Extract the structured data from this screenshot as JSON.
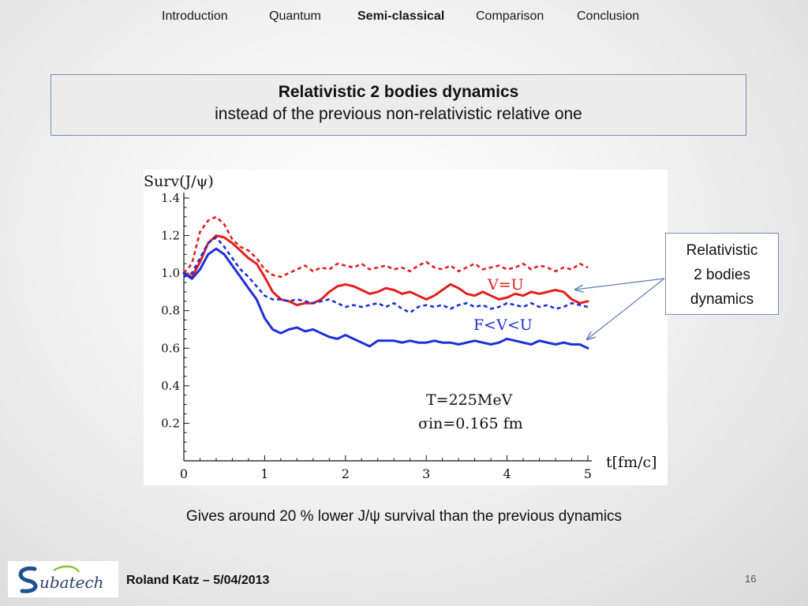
{
  "nav": {
    "items": [
      "Introduction",
      "Quantum",
      "Semi-classical",
      "Comparison",
      "Conclusion"
    ],
    "active": "Semi-classical"
  },
  "slide": {
    "title_bold": "Relativistic 2 bodies dynamics",
    "title_sub": "instead of the previous non-relativistic relative one",
    "caption": "Gives around 20 % lower J/ψ survival than the previous dynamics",
    "callout": [
      "Relativistic",
      "2 bodies",
      "dynamics"
    ],
    "author": "Roland Katz – 5/04/2013",
    "page_number": "16",
    "logo_text": "ubatech"
  },
  "chart_data": {
    "type": "line",
    "ylabel": "Surv(J/ψ)",
    "xlabel": "t[fm/c]",
    "xlim": [
      0,
      5
    ],
    "ylim": [
      0,
      1.4
    ],
    "xticks": [
      "0",
      "1",
      "2",
      "3",
      "4",
      "5"
    ],
    "yticks": [
      "0.2",
      "0.4",
      "0.6",
      "0.8",
      "1.0",
      "1.2",
      "1.4"
    ],
    "annotations": [
      "V=U",
      "F<V<U",
      "T=225MeV",
      "σin=0.165 fm"
    ],
    "colors": {
      "red": "#e41e1e",
      "blue": "#1c2fd8"
    },
    "series": [
      {
        "color": "red",
        "style": "dashed",
        "x": [
          0,
          0.1,
          0.2,
          0.3,
          0.4,
          0.5,
          0.6,
          0.7,
          0.8,
          0.9,
          1.0,
          1.1,
          1.2,
          1.3,
          1.4,
          1.5,
          1.6,
          1.7,
          1.8,
          1.9,
          2.0,
          2.1,
          2.2,
          2.3,
          2.4,
          2.5,
          2.6,
          2.7,
          2.8,
          2.9,
          3.0,
          3.1,
          3.2,
          3.3,
          3.4,
          3.5,
          3.6,
          3.7,
          3.8,
          3.9,
          4.0,
          4.1,
          4.2,
          4.3,
          4.4,
          4.5,
          4.6,
          4.7,
          4.8,
          4.9,
          5.0
        ],
        "y": [
          1.0,
          1.05,
          1.22,
          1.28,
          1.3,
          1.26,
          1.18,
          1.14,
          1.12,
          1.08,
          1.02,
          0.99,
          0.98,
          1.0,
          1.02,
          1.04,
          1.01,
          1.03,
          1.02,
          1.05,
          1.04,
          1.03,
          1.05,
          1.02,
          1.03,
          1.04,
          1.02,
          1.03,
          1.01,
          1.04,
          1.06,
          1.03,
          1.02,
          1.04,
          1.01,
          1.03,
          1.05,
          1.02,
          1.03,
          1.04,
          1.02,
          1.03,
          1.05,
          1.02,
          1.04,
          1.03,
          1.01,
          1.03,
          1.02,
          1.05,
          1.03
        ]
      },
      {
        "color": "red",
        "style": "solid",
        "x": [
          0,
          0.1,
          0.2,
          0.3,
          0.4,
          0.5,
          0.6,
          0.7,
          0.8,
          0.9,
          1.0,
          1.1,
          1.2,
          1.3,
          1.4,
          1.5,
          1.6,
          1.7,
          1.8,
          1.9,
          2.0,
          2.1,
          2.2,
          2.3,
          2.4,
          2.5,
          2.6,
          2.7,
          2.8,
          2.9,
          3.0,
          3.1,
          3.2,
          3.3,
          3.4,
          3.5,
          3.6,
          3.7,
          3.8,
          3.9,
          4.0,
          4.1,
          4.2,
          4.3,
          4.4,
          4.5,
          4.6,
          4.7,
          4.8,
          4.9,
          5.0
        ],
        "y": [
          1.0,
          0.98,
          1.06,
          1.16,
          1.2,
          1.19,
          1.16,
          1.12,
          1.08,
          1.05,
          0.98,
          0.9,
          0.86,
          0.85,
          0.83,
          0.84,
          0.84,
          0.86,
          0.9,
          0.93,
          0.94,
          0.93,
          0.91,
          0.89,
          0.9,
          0.92,
          0.91,
          0.89,
          0.9,
          0.88,
          0.86,
          0.88,
          0.91,
          0.94,
          0.92,
          0.89,
          0.88,
          0.9,
          0.88,
          0.86,
          0.87,
          0.89,
          0.88,
          0.9,
          0.89,
          0.9,
          0.91,
          0.9,
          0.86,
          0.84,
          0.85
        ]
      },
      {
        "color": "blue",
        "style": "dashed",
        "x": [
          0,
          0.1,
          0.2,
          0.3,
          0.4,
          0.5,
          0.6,
          0.7,
          0.8,
          0.9,
          1.0,
          1.1,
          1.2,
          1.3,
          1.4,
          1.5,
          1.6,
          1.7,
          1.8,
          1.9,
          2.0,
          2.1,
          2.2,
          2.3,
          2.4,
          2.5,
          2.6,
          2.7,
          2.8,
          2.9,
          3.0,
          3.1,
          3.2,
          3.3,
          3.4,
          3.5,
          3.6,
          3.7,
          3.8,
          3.9,
          4.0,
          4.1,
          4.2,
          4.3,
          4.4,
          4.5,
          4.6,
          4.7,
          4.8,
          4.9,
          5.0
        ],
        "y": [
          0.98,
          1.0,
          1.08,
          1.16,
          1.19,
          1.14,
          1.08,
          1.02,
          0.98,
          0.93,
          0.88,
          0.86,
          0.86,
          0.85,
          0.86,
          0.85,
          0.84,
          0.85,
          0.86,
          0.84,
          0.82,
          0.83,
          0.82,
          0.83,
          0.84,
          0.82,
          0.84,
          0.81,
          0.79,
          0.82,
          0.83,
          0.82,
          0.83,
          0.81,
          0.83,
          0.84,
          0.82,
          0.83,
          0.81,
          0.82,
          0.84,
          0.83,
          0.82,
          0.84,
          0.82,
          0.83,
          0.81,
          0.82,
          0.84,
          0.83,
          0.82
        ]
      },
      {
        "color": "blue",
        "style": "solid",
        "x": [
          0,
          0.1,
          0.2,
          0.3,
          0.4,
          0.5,
          0.6,
          0.7,
          0.8,
          0.9,
          1.0,
          1.1,
          1.2,
          1.3,
          1.4,
          1.5,
          1.6,
          1.7,
          1.8,
          1.9,
          2.0,
          2.1,
          2.2,
          2.3,
          2.4,
          2.5,
          2.6,
          2.7,
          2.8,
          2.9,
          3.0,
          3.1,
          3.2,
          3.3,
          3.4,
          3.5,
          3.6,
          3.7,
          3.8,
          3.9,
          4.0,
          4.1,
          4.2,
          4.3,
          4.4,
          4.5,
          4.6,
          4.7,
          4.8,
          4.9,
          5.0
        ],
        "y": [
          1.0,
          0.97,
          1.02,
          1.1,
          1.13,
          1.1,
          1.04,
          0.98,
          0.92,
          0.86,
          0.76,
          0.7,
          0.68,
          0.7,
          0.71,
          0.69,
          0.7,
          0.68,
          0.66,
          0.65,
          0.67,
          0.65,
          0.63,
          0.61,
          0.64,
          0.64,
          0.64,
          0.63,
          0.64,
          0.63,
          0.63,
          0.64,
          0.63,
          0.63,
          0.62,
          0.63,
          0.64,
          0.63,
          0.62,
          0.63,
          0.65,
          0.64,
          0.63,
          0.62,
          0.64,
          0.63,
          0.62,
          0.63,
          0.62,
          0.62,
          0.6
        ]
      }
    ]
  }
}
